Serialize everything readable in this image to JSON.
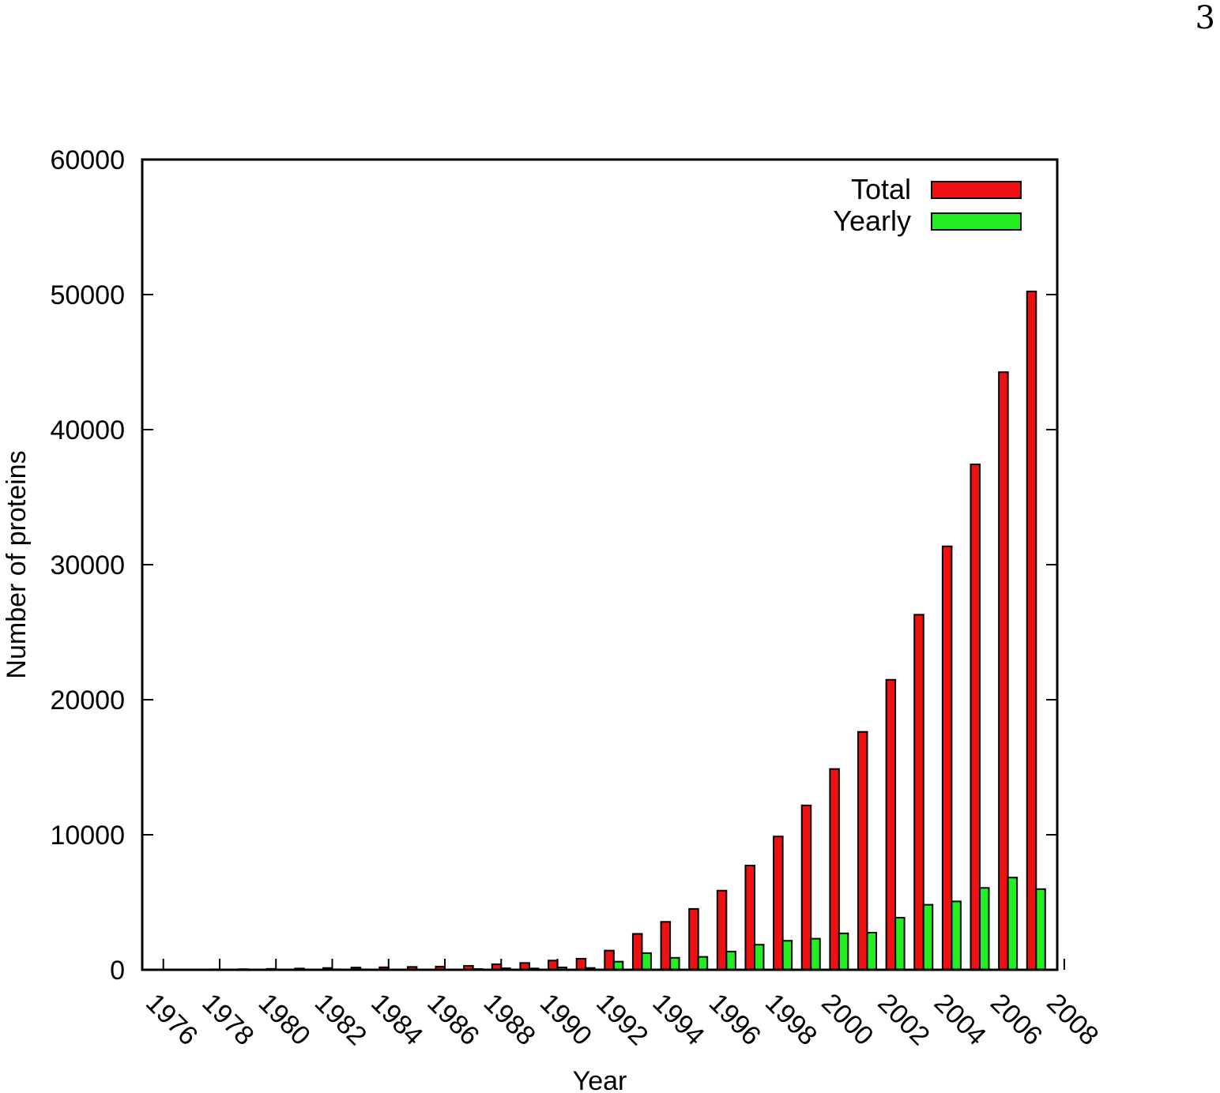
{
  "page_number": "3",
  "chart_data": {
    "type": "bar",
    "xlabel": "Year",
    "ylabel": "Number of proteins",
    "ylim": [
      0,
      60000
    ],
    "y_ticks": [
      0,
      10000,
      20000,
      30000,
      40000,
      50000,
      60000
    ],
    "x_tick_labels": [
      "1976",
      "1978",
      "1980",
      "1982",
      "1984",
      "1986",
      "1988",
      "1990",
      "1992",
      "1994",
      "1996",
      "1998",
      "2000",
      "2002",
      "2004",
      "2006",
      "2008"
    ],
    "legend_position": "top-right",
    "categories": [
      "1976",
      "1977",
      "1978",
      "1979",
      "1980",
      "1981",
      "1982",
      "1983",
      "1984",
      "1985",
      "1986",
      "1987",
      "1988",
      "1989",
      "1990",
      "1991",
      "1992",
      "1993",
      "1994",
      "1995",
      "1996",
      "1997",
      "1998",
      "1999",
      "2000",
      "2001",
      "2002",
      "2003",
      "2004",
      "2005",
      "2006",
      "2007"
    ],
    "series": [
      {
        "name": "Total",
        "color": "#ee1111",
        "values": [
          13,
          23,
          36,
          47,
          69,
          97,
          133,
          167,
          186,
          214,
          238,
          294,
          407,
          507,
          686,
          820,
          1424,
          2662,
          3551,
          4510,
          5862,
          7720,
          9870,
          12173,
          14871,
          17619,
          21476,
          26294,
          31358,
          37424,
          44253,
          50229
        ]
      },
      {
        "name": "Yearly",
        "color": "#22ee22",
        "values": [
          10,
          10,
          13,
          11,
          22,
          28,
          36,
          34,
          19,
          28,
          24,
          56,
          113,
          100,
          179,
          134,
          604,
          1238,
          889,
          959,
          1352,
          1858,
          2150,
          2303,
          2698,
          2748,
          3857,
          4818,
          5064,
          6066,
          6829,
          5976
        ]
      }
    ]
  }
}
